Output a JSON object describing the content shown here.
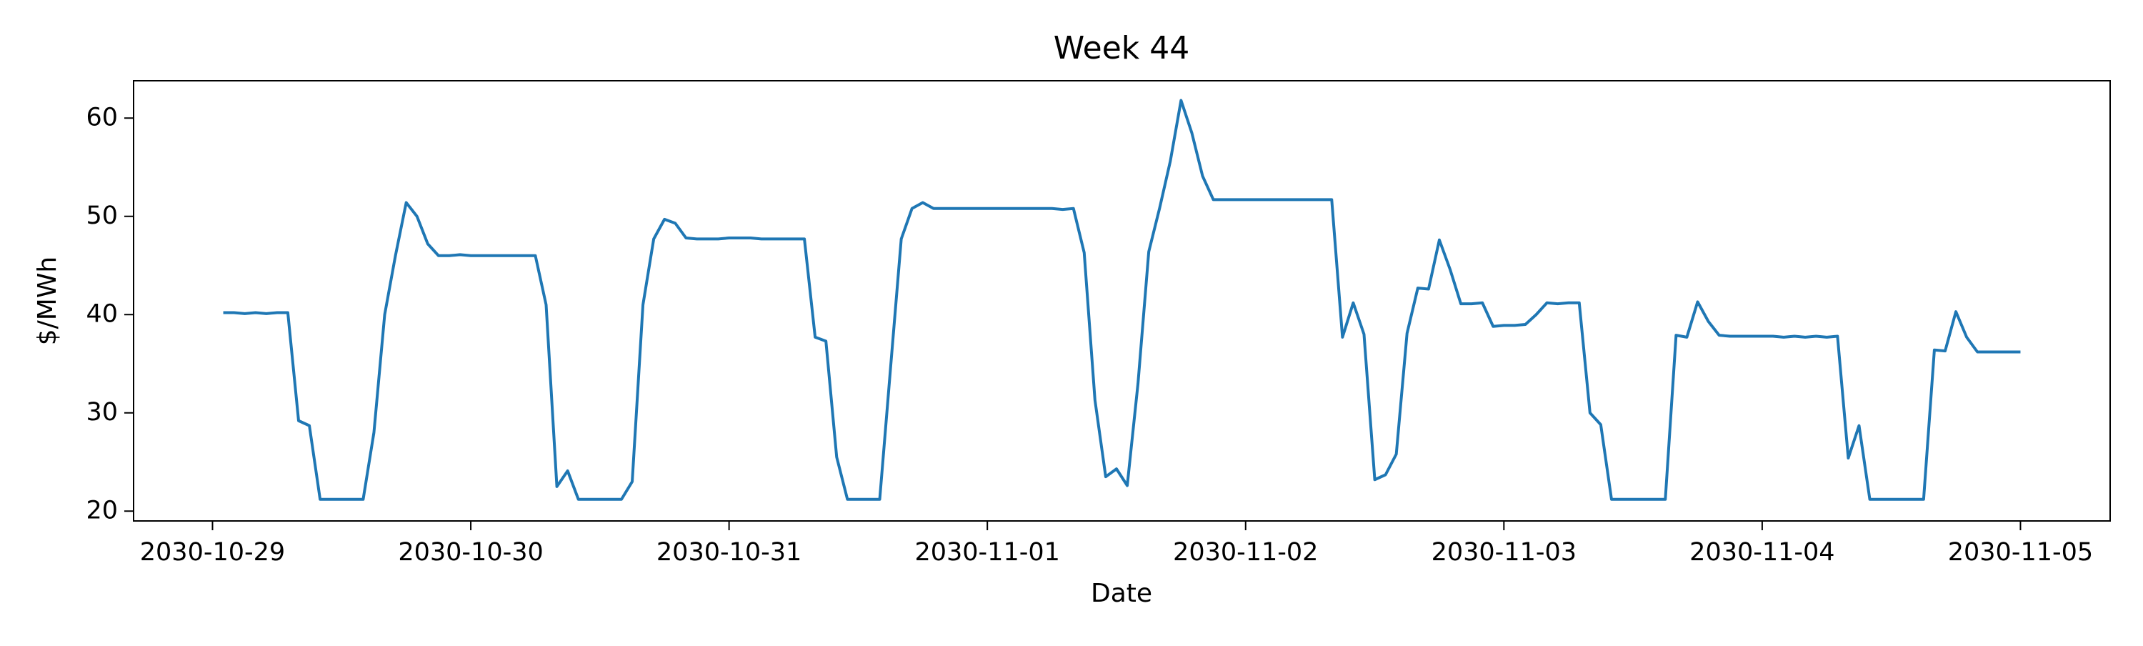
{
  "chart_data": {
    "type": "line",
    "title": "Week 44",
    "xlabel": "Date",
    "ylabel": "$/MWh",
    "x": [
      "2030-10-29T01:00",
      "2030-10-29T02:00",
      "2030-10-29T03:00",
      "2030-10-29T04:00",
      "2030-10-29T05:00",
      "2030-10-29T06:00",
      "2030-10-29T07:00",
      "2030-10-29T08:00",
      "2030-10-29T09:00",
      "2030-10-29T10:00",
      "2030-10-29T11:00",
      "2030-10-29T12:00",
      "2030-10-29T13:00",
      "2030-10-29T14:00",
      "2030-10-29T15:00",
      "2030-10-29T16:00",
      "2030-10-29T17:00",
      "2030-10-29T18:00",
      "2030-10-29T19:00",
      "2030-10-29T20:00",
      "2030-10-29T21:00",
      "2030-10-29T22:00",
      "2030-10-29T23:00",
      "2030-10-30T00:00",
      "2030-10-30T01:00",
      "2030-10-30T02:00",
      "2030-10-30T03:00",
      "2030-10-30T04:00",
      "2030-10-30T05:00",
      "2030-10-30T06:00",
      "2030-10-30T07:00",
      "2030-10-30T08:00",
      "2030-10-30T09:00",
      "2030-10-30T10:00",
      "2030-10-30T11:00",
      "2030-10-30T12:00",
      "2030-10-30T13:00",
      "2030-10-30T14:00",
      "2030-10-30T15:00",
      "2030-10-30T16:00",
      "2030-10-30T17:00",
      "2030-10-30T18:00",
      "2030-10-30T19:00",
      "2030-10-30T20:00",
      "2030-10-30T21:00",
      "2030-10-30T22:00",
      "2030-10-30T23:00",
      "2030-10-31T00:00",
      "2030-10-31T01:00",
      "2030-10-31T02:00",
      "2030-10-31T03:00",
      "2030-10-31T04:00",
      "2030-10-31T05:00",
      "2030-10-31T06:00",
      "2030-10-31T07:00",
      "2030-10-31T08:00",
      "2030-10-31T09:00",
      "2030-10-31T10:00",
      "2030-10-31T11:00",
      "2030-10-31T12:00",
      "2030-10-31T13:00",
      "2030-10-31T14:00",
      "2030-10-31T15:00",
      "2030-10-31T16:00",
      "2030-10-31T17:00",
      "2030-10-31T18:00",
      "2030-10-31T19:00",
      "2030-10-31T20:00",
      "2030-10-31T21:00",
      "2030-10-31T22:00",
      "2030-10-31T23:00",
      "2030-11-01T00:00",
      "2030-11-01T01:00",
      "2030-11-01T02:00",
      "2030-11-01T03:00",
      "2030-11-01T04:00",
      "2030-11-01T05:00",
      "2030-11-01T06:00",
      "2030-11-01T07:00",
      "2030-11-01T08:00",
      "2030-11-01T09:00",
      "2030-11-01T10:00",
      "2030-11-01T11:00",
      "2030-11-01T12:00",
      "2030-11-01T13:00",
      "2030-11-01T14:00",
      "2030-11-01T15:00",
      "2030-11-01T16:00",
      "2030-11-01T17:00",
      "2030-11-01T18:00",
      "2030-11-01T19:00",
      "2030-11-01T20:00",
      "2030-11-01T21:00",
      "2030-11-01T22:00",
      "2030-11-01T23:00",
      "2030-11-02T00:00",
      "2030-11-02T01:00",
      "2030-11-02T02:00",
      "2030-11-02T03:00",
      "2030-11-02T04:00",
      "2030-11-02T05:00",
      "2030-11-02T06:00",
      "2030-11-02T07:00",
      "2030-11-02T08:00",
      "2030-11-02T09:00",
      "2030-11-02T10:00",
      "2030-11-02T11:00",
      "2030-11-02T12:00",
      "2030-11-02T13:00",
      "2030-11-02T14:00",
      "2030-11-02T15:00",
      "2030-11-02T16:00",
      "2030-11-02T17:00",
      "2030-11-02T18:00",
      "2030-11-02T19:00",
      "2030-11-02T20:00",
      "2030-11-02T21:00",
      "2030-11-02T22:00",
      "2030-11-02T23:00",
      "2030-11-03T00:00",
      "2030-11-03T01:00",
      "2030-11-03T02:00",
      "2030-11-03T03:00",
      "2030-11-03T04:00",
      "2030-11-03T05:00",
      "2030-11-03T06:00",
      "2030-11-03T07:00",
      "2030-11-03T08:00",
      "2030-11-03T09:00",
      "2030-11-03T10:00",
      "2030-11-03T11:00",
      "2030-11-03T12:00",
      "2030-11-03T13:00",
      "2030-11-03T14:00",
      "2030-11-03T15:00",
      "2030-11-03T16:00",
      "2030-11-03T17:00",
      "2030-11-03T18:00",
      "2030-11-03T19:00",
      "2030-11-03T20:00",
      "2030-11-03T21:00",
      "2030-11-03T22:00",
      "2030-11-03T23:00",
      "2030-11-04T00:00",
      "2030-11-04T01:00",
      "2030-11-04T02:00",
      "2030-11-04T03:00",
      "2030-11-04T04:00",
      "2030-11-04T05:00",
      "2030-11-04T06:00",
      "2030-11-04T07:00",
      "2030-11-04T08:00",
      "2030-11-04T09:00",
      "2030-11-04T10:00",
      "2030-11-04T11:00",
      "2030-11-04T12:00",
      "2030-11-04T13:00",
      "2030-11-04T14:00",
      "2030-11-04T15:00",
      "2030-11-04T16:00",
      "2030-11-04T17:00",
      "2030-11-04T18:00",
      "2030-11-04T19:00",
      "2030-11-04T20:00",
      "2030-11-04T21:00",
      "2030-11-04T22:00",
      "2030-11-04T23:00",
      "2030-11-05T00:00"
    ],
    "series": [
      {
        "color": "#1f77b4",
        "values": [
          40.2,
          40.2,
          40.1,
          40.2,
          40.1,
          40.2,
          40.2,
          29.2,
          28.7,
          21.2,
          21.2,
          21.2,
          21.2,
          21.2,
          28,
          40,
          46,
          51.4,
          50,
          47.2,
          46,
          46,
          46.1,
          46,
          46,
          46,
          46,
          46,
          46,
          46,
          41,
          22.5,
          24.1,
          21.2,
          21.2,
          21.2,
          21.2,
          21.2,
          23,
          41,
          47.7,
          49.7,
          49.3,
          47.8,
          47.7,
          47.7,
          47.7,
          47.8,
          47.8,
          47.8,
          47.7,
          47.7,
          47.7,
          47.7,
          47.7,
          37.7,
          37.3,
          25.5,
          21.2,
          21.2,
          21.2,
          21.2,
          34.5,
          47.7,
          50.8,
          51.4,
          50.8,
          50.8,
          50.8,
          50.8,
          50.8,
          50.8,
          50.8,
          50.8,
          50.8,
          50.8,
          50.8,
          50.8,
          50.7,
          50.8,
          46.3,
          31.3,
          23.5,
          24.3,
          22.6,
          33,
          46.4,
          50.8,
          55.6,
          61.8,
          58.5,
          54.1,
          51.7,
          51.7,
          51.7,
          51.7,
          51.7,
          51.7,
          51.7,
          51.7,
          51.7,
          51.7,
          51.7,
          51.7,
          37.7,
          41.2,
          38,
          23.2,
          23.7,
          25.8,
          38.1,
          42.7,
          42.6,
          47.6,
          44.6,
          41.1,
          41.1,
          41.2,
          38.8,
          38.9,
          38.9,
          39,
          40,
          41.2,
          41.1,
          41.2,
          41.2,
          30,
          28.8,
          21.2,
          21.2,
          21.2,
          21.2,
          21.2,
          21.2,
          37.9,
          37.7,
          41.3,
          39.3,
          37.9,
          37.8,
          37.8,
          37.8,
          37.8,
          37.8,
          37.7,
          37.8,
          37.7,
          37.8,
          37.7,
          37.8,
          25.4,
          28.7,
          21.2,
          21.2,
          21.2,
          21.2,
          21.2,
          21.2,
          36.4,
          36.3,
          40.3,
          37.7,
          36.2,
          36.2,
          36.2,
          36.2,
          36.2
        ]
      }
    ],
    "xlim": [
      "2030-10-28T16:40",
      "2030-11-05T08:20"
    ],
    "xticks": [
      {
        "value": "2030-10-29T00:00",
        "label": "2030-10-29"
      },
      {
        "value": "2030-10-30T00:00",
        "label": "2030-10-30"
      },
      {
        "value": "2030-10-31T00:00",
        "label": "2030-10-31"
      },
      {
        "value": "2030-11-01T00:00",
        "label": "2030-11-01"
      },
      {
        "value": "2030-11-02T00:00",
        "label": "2030-11-02"
      },
      {
        "value": "2030-11-03T00:00",
        "label": "2030-11-03"
      },
      {
        "value": "2030-11-04T00:00",
        "label": "2030-11-04"
      },
      {
        "value": "2030-11-05T00:00",
        "label": "2030-11-05"
      }
    ],
    "ylim": [
      19,
      63.8
    ],
    "yticks": [
      20,
      30,
      40,
      50,
      60
    ],
    "grid": false
  }
}
